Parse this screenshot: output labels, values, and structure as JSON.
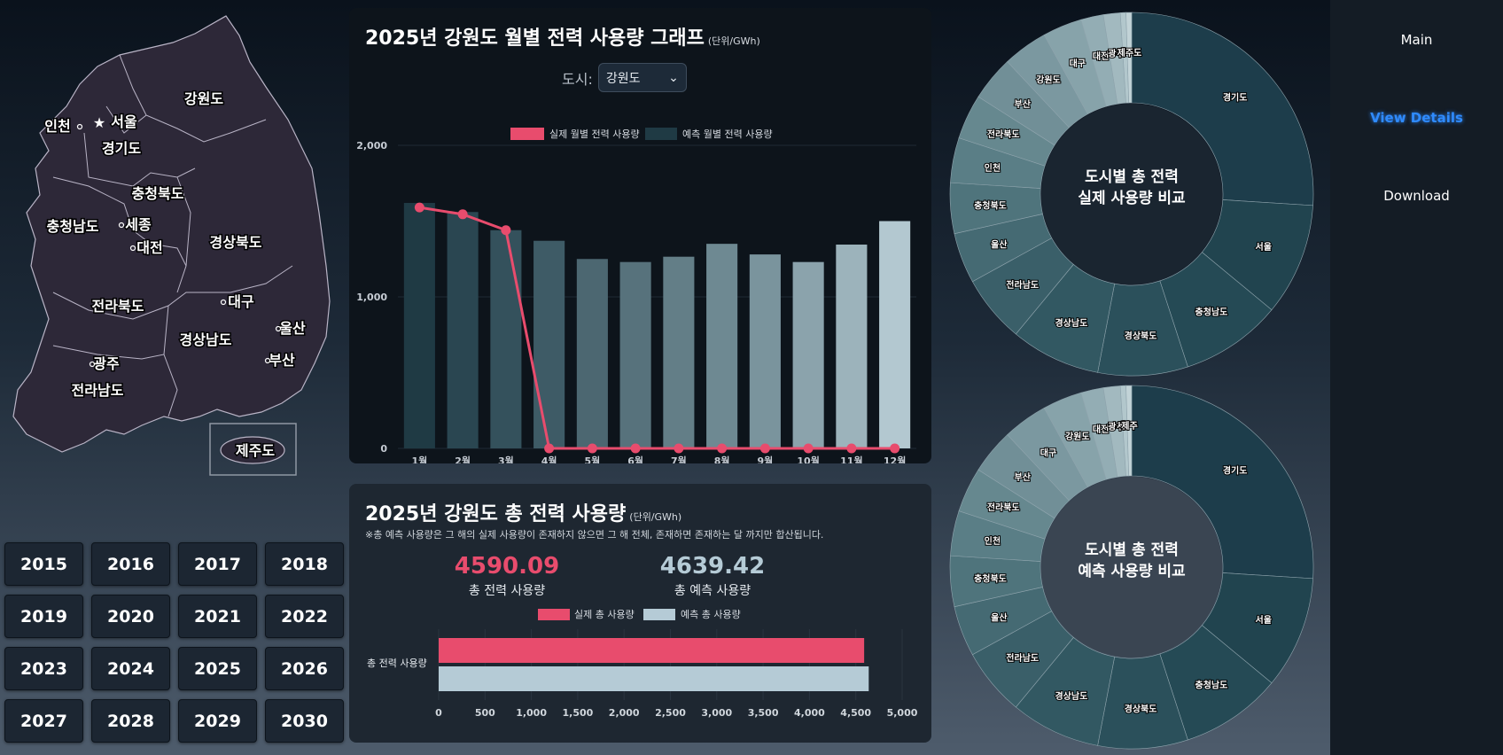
{
  "map": {
    "regions": [
      "강원도",
      "서울",
      "인천",
      "경기도",
      "충청북도",
      "세종",
      "충청남도",
      "대전",
      "경상북도",
      "대구",
      "전라북도",
      "울산",
      "경상남도",
      "부산",
      "광주",
      "전라남도",
      "제주도"
    ]
  },
  "years": [
    "2015",
    "2016",
    "2017",
    "2018",
    "2019",
    "2020",
    "2021",
    "2022",
    "2023",
    "2024",
    "2025",
    "2026",
    "2027",
    "2028",
    "2029",
    "2030"
  ],
  "monthly": {
    "title": "2025년 강원도 월별 전력 사용량 그래프",
    "unit": "(단위/GWh)",
    "city_label": "도시:",
    "city_selected": "강원도"
  },
  "total": {
    "title": "2025년 강원도 총 전력 사용량",
    "unit": "(단위/GWh)",
    "note": "※총 예측 사용량은 그 해의 실제 사용량이 존재하지 않으면 그 해 전체, 존재하면 존재하는 달 까지만 합산됩니다.",
    "actual_value": "4590.09",
    "actual_label": "총 전력 사용량",
    "predicted_value": "4639.42",
    "predicted_label": "총 예측 사용량"
  },
  "donuts": {
    "actual_title_1": "도시별 총 전력",
    "actual_title_2": "실제 사용량 비교",
    "predicted_title_1": "도시별 총 전력",
    "predicted_title_2": "예측 사용량 비교"
  },
  "sidebar": {
    "main": "Main",
    "details": "View Details",
    "download": "Download"
  },
  "colors": {
    "actual": "#e84c6d",
    "predicted_total": "#b5cbd6",
    "active_link": "#2f8bff"
  },
  "chart_data": [
    {
      "type": "bar",
      "categories": [
        "1월",
        "2월",
        "3월",
        "4월",
        "5월",
        "6월",
        "7월",
        "8월",
        "9월",
        "10월",
        "11월",
        "12월"
      ],
      "series": [
        {
          "name": "예측 월별 전력 사용량",
          "values": [
            1620,
            1560,
            1440,
            1370,
            1250,
            1230,
            1265,
            1350,
            1280,
            1230,
            1345,
            1500
          ]
        },
        {
          "name": "실제 월별 전력 사용량",
          "type": "line",
          "values": [
            1590,
            1545,
            1440,
            0,
            0,
            0,
            0,
            0,
            0,
            0,
            0,
            0
          ]
        }
      ],
      "ylim": [
        0,
        2000
      ],
      "yticks": [
        "0",
        "1,000",
        "2,000"
      ],
      "legend": "top"
    },
    {
      "type": "bar",
      "orientation": "horizontal",
      "categories": [
        "총 전력 사용량"
      ],
      "series": [
        {
          "name": "실제 총 사용량",
          "values": [
            4590.09
          ]
        },
        {
          "name": "예측 총 사용량",
          "values": [
            4639.42
          ]
        }
      ],
      "xlim": [
        0,
        5000
      ],
      "xticks": [
        "0",
        "500",
        "1,000",
        "1,500",
        "2,000",
        "2,500",
        "3,000",
        "3,500",
        "4,000",
        "4,500",
        "5,000"
      ],
      "legend": "top"
    },
    {
      "type": "pie",
      "title": "도시별 총 전력 실제 사용량 비교",
      "labels": [
        "경기도",
        "서울",
        "충청남도",
        "경상북도",
        "경상남도",
        "전라남도",
        "울산",
        "충청북도",
        "인천",
        "전라북도",
        "부산",
        "강원도",
        "대구",
        "대전",
        "광주",
        "세종",
        "제주도"
      ],
      "values": [
        26,
        10,
        9,
        8,
        8,
        6,
        4.5,
        4.5,
        4,
        4,
        4,
        4,
        3.5,
        2,
        1.5,
        0.5,
        0.5
      ]
    },
    {
      "type": "pie",
      "title": "도시별 총 전력 예측 사용량 비교",
      "labels": [
        "경기도",
        "서울",
        "충청남도",
        "경상북도",
        "경상남도",
        "전라남도",
        "울산",
        "충청북도",
        "인천",
        "전라북도",
        "부산",
        "대구",
        "강원도",
        "대전",
        "광주",
        "세종",
        "제주"
      ],
      "values": [
        26,
        10,
        9,
        8,
        8,
        6,
        4.5,
        4.5,
        4,
        4,
        4,
        4,
        3.5,
        2,
        1.5,
        0.5,
        0.5
      ]
    }
  ]
}
